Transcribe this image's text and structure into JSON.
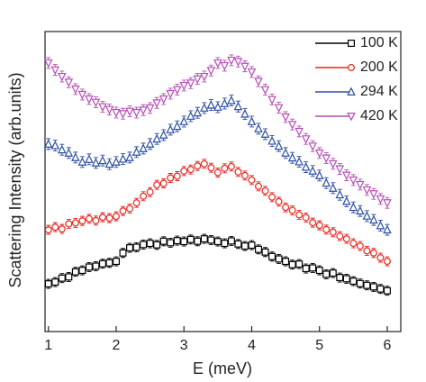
{
  "chart_data": {
    "type": "scatter",
    "xlabel": "E (meV)",
    "ylabel": "Scattering Intensity (arb.units)",
    "xlim": [
      0.95,
      6.2
    ],
    "xticks": [
      1,
      2,
      3,
      4,
      5,
      6
    ],
    "ylim": [
      0,
      100
    ],
    "legend": "upper right",
    "x": [
      1.0,
      1.1,
      1.2,
      1.3,
      1.4,
      1.5,
      1.6,
      1.7,
      1.8,
      1.9,
      2.0,
      2.1,
      2.2,
      2.3,
      2.4,
      2.5,
      2.6,
      2.7,
      2.8,
      2.9,
      3.0,
      3.1,
      3.2,
      3.3,
      3.4,
      3.5,
      3.6,
      3.7,
      3.8,
      3.9,
      4.0,
      4.1,
      4.2,
      4.3,
      4.4,
      4.5,
      4.6,
      4.7,
      4.8,
      4.9,
      5.0,
      5.1,
      5.2,
      5.3,
      5.4,
      5.5,
      5.6,
      5.7,
      5.8,
      5.9,
      6.0
    ],
    "series": [
      {
        "name": "100 K",
        "color": "#000000",
        "marker": "square",
        "error": 1.5,
        "values": [
          15.9,
          16.5,
          17.8,
          18.2,
          19.9,
          20.4,
          21.5,
          21.8,
          22.6,
          22.9,
          23.4,
          26.2,
          27.9,
          28.1,
          29.0,
          29.4,
          28.9,
          30.1,
          29.6,
          30.3,
          30.0,
          30.7,
          30.1,
          30.9,
          30.5,
          30.0,
          29.4,
          30.2,
          29.2,
          28.5,
          28.8,
          27.4,
          26.5,
          25.0,
          24.2,
          23.4,
          22.3,
          22.5,
          21.0,
          21.2,
          20.4,
          19.1,
          19.5,
          18.0,
          17.6,
          16.8,
          16.0,
          15.4,
          14.9,
          14.2,
          13.6
        ]
      },
      {
        "name": "200 K",
        "color": "#e8251f",
        "marker": "circle",
        "error": 1.5,
        "values": [
          33.9,
          34.8,
          34.2,
          35.9,
          36.2,
          36.9,
          37.6,
          37.0,
          38.1,
          37.8,
          38.4,
          40.2,
          41.0,
          42.9,
          45.1,
          46.5,
          48.9,
          49.4,
          51.2,
          51.8,
          53.5,
          54.0,
          55.2,
          55.9,
          54.6,
          53.0,
          54.4,
          55.0,
          53.2,
          52.0,
          50.5,
          48.4,
          46.9,
          44.8,
          43.3,
          41.4,
          40.4,
          38.9,
          38.0,
          36.3,
          35.4,
          34.0,
          33.1,
          31.8,
          30.9,
          29.4,
          28.5,
          26.9,
          26.2,
          24.6,
          23.4
        ]
      },
      {
        "name": "294 K",
        "color": "#2b4fa3",
        "marker": "triangle-up",
        "error": 1.8,
        "values": [
          62.5,
          62.0,
          60.6,
          59.5,
          58.0,
          56.5,
          57.4,
          56.2,
          57.0,
          55.8,
          56.5,
          57.5,
          58.0,
          59.8,
          61.0,
          62.5,
          64.2,
          65.5,
          67.3,
          68.4,
          70.0,
          71.8,
          72.9,
          74.5,
          75.5,
          74.8,
          76.0,
          77.0,
          75.0,
          72.5,
          70.0,
          67.6,
          65.8,
          63.5,
          61.8,
          59.5,
          57.9,
          56.6,
          54.8,
          53.5,
          52.0,
          49.5,
          47.8,
          45.6,
          43.4,
          41.4,
          40.2,
          38.5,
          37.2,
          35.3,
          33.9
        ]
      },
      {
        "name": "420 K",
        "color": "#b44fb4",
        "marker": "triangle-down",
        "error": 1.8,
        "values": [
          89.5,
          87.2,
          85.0,
          83.1,
          80.8,
          79.0,
          77.5,
          76.4,
          74.9,
          74.0,
          73.0,
          72.6,
          73.4,
          73.0,
          73.8,
          74.5,
          76.2,
          77.5,
          79.3,
          80.6,
          82.0,
          82.8,
          84.2,
          85.0,
          87.0,
          89.5,
          88.6,
          90.4,
          90.0,
          88.4,
          86.5,
          83.4,
          80.6,
          77.3,
          74.6,
          71.5,
          69.0,
          66.7,
          64.2,
          61.8,
          59.5,
          57.8,
          55.9,
          54.2,
          52.1,
          50.5,
          49.0,
          47.2,
          45.9,
          44.2,
          42.9
        ]
      }
    ]
  }
}
